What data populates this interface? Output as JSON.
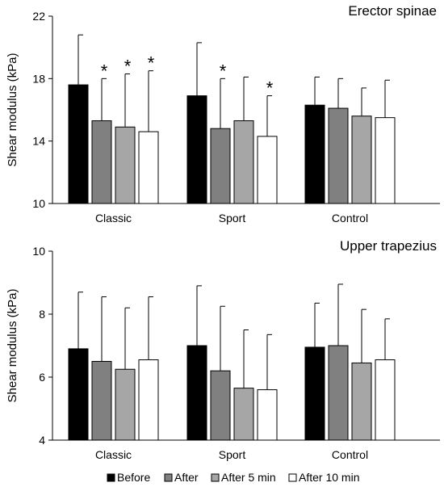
{
  "figure": {
    "legend_position": "bottom",
    "legend": [
      {
        "name": "Before",
        "color": "#000000"
      },
      {
        "name": "After",
        "color": "#808080"
      },
      {
        "name": "After 5 min",
        "color": "#a6a6a6"
      },
      {
        "name": "After 10 min",
        "color": "#ffffff"
      }
    ]
  },
  "chart_data": [
    {
      "type": "bar",
      "title": "Erector spinae",
      "xlabel": "",
      "ylabel": "Shear modulus (kPa)",
      "ylim": [
        10,
        22
      ],
      "yticks": [
        10,
        14,
        18,
        22
      ],
      "grid": false,
      "categories": [
        "Classic",
        "Sport",
        "Control"
      ],
      "series": [
        {
          "name": "Before",
          "color": "#000000",
          "values": [
            17.6,
            16.9,
            16.3
          ],
          "error": [
            3.2,
            3.4,
            1.8
          ],
          "significant": [
            false,
            false,
            false
          ]
        },
        {
          "name": "After",
          "color": "#808080",
          "values": [
            15.3,
            14.8,
            16.1
          ],
          "error": [
            2.7,
            3.2,
            1.9
          ],
          "significant": [
            true,
            true,
            false
          ]
        },
        {
          "name": "After 5 min",
          "color": "#a6a6a6",
          "values": [
            14.9,
            15.3,
            15.6
          ],
          "error": [
            3.4,
            2.8,
            1.8
          ],
          "significant": [
            true,
            false,
            false
          ]
        },
        {
          "name": "After 10 min",
          "color": "#ffffff",
          "values": [
            14.6,
            14.3,
            15.5
          ],
          "error": [
            3.9,
            2.6,
            2.4
          ],
          "significant": [
            true,
            true,
            false
          ]
        }
      ],
      "significance_marker": "*"
    },
    {
      "type": "bar",
      "title": "Upper trapezius",
      "xlabel": "",
      "ylabel": "Shear modulus (kPa)",
      "ylim": [
        4,
        10
      ],
      "yticks": [
        4,
        6,
        8,
        10
      ],
      "grid": false,
      "categories": [
        "Classic",
        "Sport",
        "Control"
      ],
      "series": [
        {
          "name": "Before",
          "color": "#000000",
          "values": [
            6.9,
            7.0,
            6.95
          ],
          "error": [
            1.8,
            1.9,
            1.4
          ],
          "significant": [
            false,
            false,
            false
          ]
        },
        {
          "name": "After",
          "color": "#808080",
          "values": [
            6.5,
            6.2,
            7.0
          ],
          "error": [
            2.05,
            2.05,
            1.95
          ],
          "significant": [
            false,
            false,
            false
          ]
        },
        {
          "name": "After 5 min",
          "color": "#a6a6a6",
          "values": [
            6.25,
            5.65,
            6.45
          ],
          "error": [
            1.95,
            1.85,
            1.7
          ],
          "significant": [
            false,
            false,
            false
          ]
        },
        {
          "name": "After 10 min",
          "color": "#ffffff",
          "values": [
            6.55,
            5.6,
            6.55
          ],
          "error": [
            2.0,
            1.75,
            1.3
          ],
          "significant": [
            false,
            false,
            false
          ]
        }
      ],
      "significance_marker": "*"
    }
  ]
}
